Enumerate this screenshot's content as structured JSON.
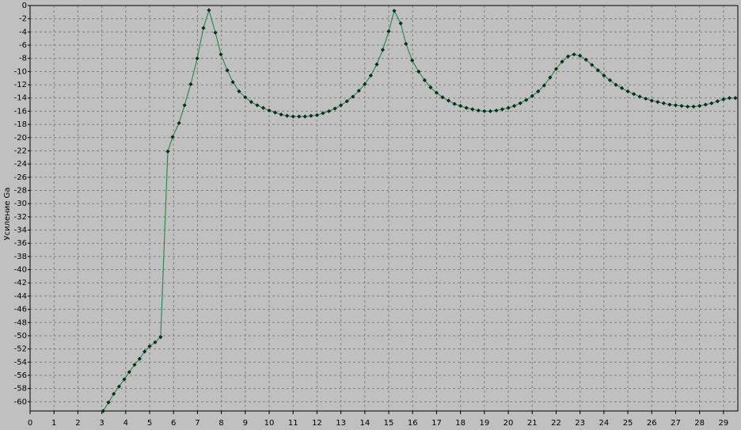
{
  "chart_data": {
    "type": "line",
    "y_label": "Усиление Ga",
    "x": [
      3.06,
      3.28,
      3.5,
      3.72,
      3.94,
      4.15,
      4.37,
      4.58,
      4.79,
      5.0,
      5.23,
      5.46,
      5.76,
      5.96,
      6.23,
      6.46,
      6.72,
      6.99,
      7.25,
      7.48,
      7.75,
      7.98,
      8.25,
      8.48,
      8.74,
      9.0,
      9.25,
      9.5,
      9.75,
      10.0,
      10.25,
      10.5,
      10.75,
      11.0,
      11.25,
      11.5,
      11.75,
      12.0,
      12.25,
      12.5,
      12.75,
      13.0,
      13.25,
      13.5,
      13.75,
      14.0,
      14.25,
      14.5,
      14.75,
      15.0,
      15.23,
      15.5,
      15.72,
      15.98,
      16.25,
      16.5,
      16.75,
      17.0,
      17.25,
      17.5,
      17.75,
      18.0,
      18.25,
      18.5,
      18.75,
      19.0,
      19.25,
      19.5,
      19.75,
      20.0,
      20.25,
      20.5,
      20.75,
      21.0,
      21.25,
      21.5,
      21.75,
      22.0,
      22.25,
      22.5,
      22.75,
      23.0,
      23.25,
      23.5,
      23.75,
      24.0,
      24.25,
      24.5,
      24.75,
      25.0,
      25.25,
      25.5,
      25.75,
      26.0,
      26.25,
      26.5,
      26.75,
      27.0,
      27.25,
      27.5,
      27.75,
      28.0,
      28.25,
      28.5,
      28.75,
      29.0,
      29.25,
      29.5
    ],
    "values": [
      -61.4,
      -60.1,
      -58.8,
      -57.7,
      -56.6,
      -55.5,
      -54.4,
      -53.5,
      -52.4,
      -51.6,
      -51.0,
      -50.2,
      -22.1,
      -19.9,
      -17.8,
      -15.1,
      -11.9,
      -8.0,
      -3.4,
      -0.7,
      -4.1,
      -7.4,
      -9.8,
      -11.6,
      -13.0,
      -13.9,
      -14.6,
      -15.1,
      -15.5,
      -15.9,
      -16.2,
      -16.5,
      -16.7,
      -16.8,
      -16.8,
      -16.8,
      -16.7,
      -16.6,
      -16.3,
      -16.0,
      -15.6,
      -15.1,
      -14.5,
      -13.8,
      -12.9,
      -11.9,
      -10.6,
      -8.9,
      -6.7,
      -3.9,
      -0.8,
      -2.7,
      -5.8,
      -8.3,
      -10.0,
      -11.3,
      -12.4,
      -13.2,
      -13.9,
      -14.4,
      -14.9,
      -15.2,
      -15.5,
      -15.7,
      -15.9,
      -16.0,
      -16.0,
      -15.9,
      -15.7,
      -15.5,
      -15.2,
      -14.8,
      -14.3,
      -13.7,
      -13.0,
      -12.1,
      -10.9,
      -9.6,
      -8.5,
      -7.7,
      -7.4,
      -7.6,
      -8.2,
      -9.0,
      -9.8,
      -10.6,
      -11.3,
      -12.0,
      -12.5,
      -13.0,
      -13.4,
      -13.8,
      -14.1,
      -14.4,
      -14.6,
      -14.8,
      -15.0,
      -15.1,
      -15.2,
      -15.3,
      -15.3,
      -15.2,
      -15.0,
      -14.8,
      -14.5,
      -14.2,
      -14.0,
      -14.0
    ],
    "color": "#2e8b57",
    "marker_color": "#0b2e1a",
    "xlim": [
      0,
      29.6
    ],
    "ylim": [
      -61.4,
      0
    ],
    "xticks": [
      0,
      1,
      2,
      3,
      4,
      5,
      6,
      7,
      8,
      9,
      10,
      11,
      12,
      13,
      14,
      15,
      16,
      17,
      18,
      19,
      20,
      21,
      22,
      23,
      24,
      25,
      26,
      27,
      28,
      29
    ],
    "yticks": [
      0,
      -2,
      -4,
      -6,
      -8,
      -10,
      -12,
      -14,
      -16,
      -18,
      -20,
      -22,
      -24,
      -26,
      -28,
      -30,
      -32,
      -34,
      -36,
      -38,
      -40,
      -42,
      -44,
      -46,
      -48,
      -50,
      -52,
      -54,
      -56,
      -58,
      -60
    ],
    "grid": true
  }
}
